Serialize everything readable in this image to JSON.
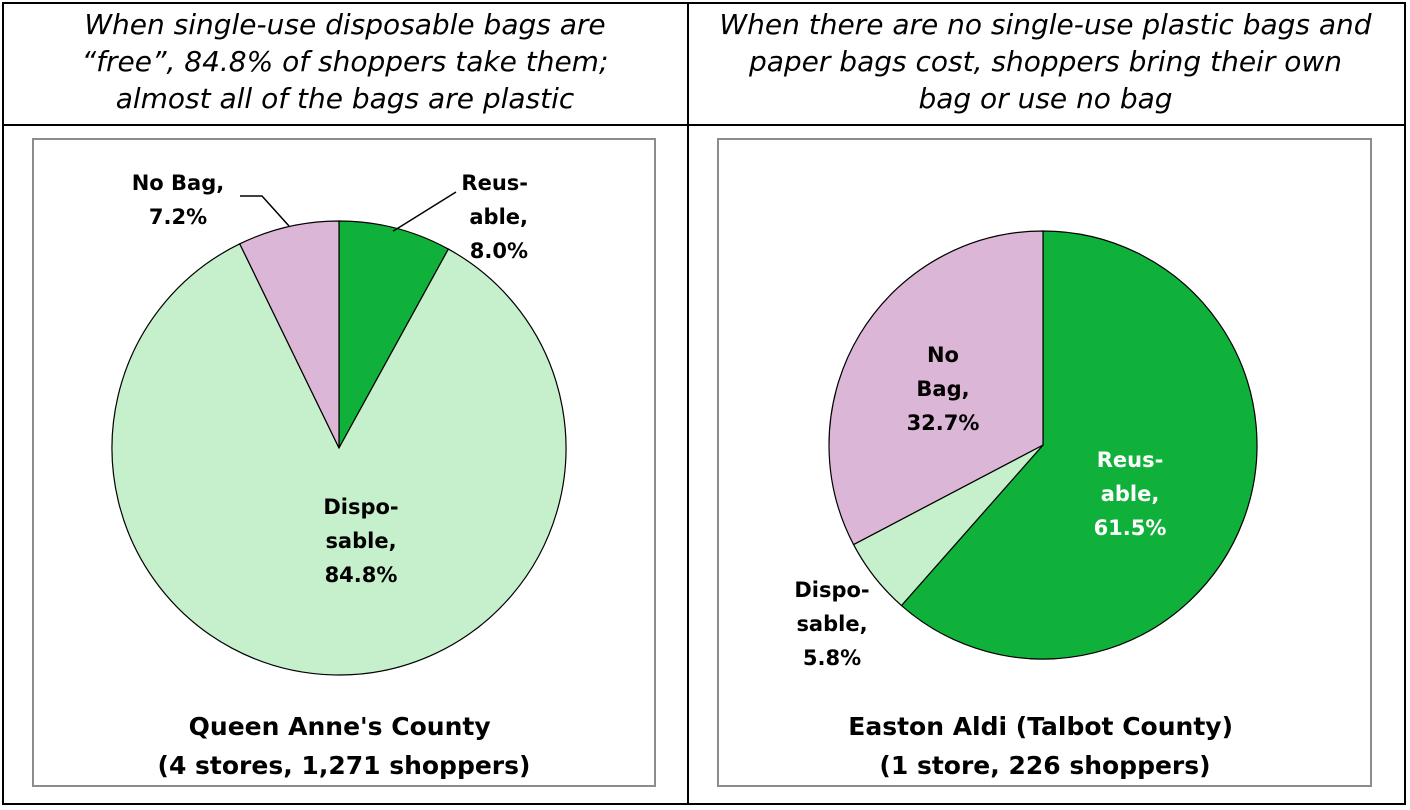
{
  "panels": [
    {
      "heading_lines": [
        "When single-use disposable bags are",
        "“free”, 84.8% of shoppers take them;",
        "almost all of the bags are plastic"
      ]
    },
    {
      "heading_lines": [
        "When there are no single-use plastic bags and",
        "paper bags cost, shoppers bring their own",
        "bag or use no bag"
      ]
    }
  ],
  "chart_data": [
    {
      "type": "pie",
      "subtitle_lines": [
        "Queen Anne's County",
        "(4 stores, 1,271 shoppers)"
      ],
      "slices": [
        {
          "label_lines": [
            "Reus-",
            "able,",
            "8.0%"
          ],
          "value": 8.0,
          "color": "#10b13a",
          "label_color": "#000000"
        },
        {
          "label_lines": [
            "Dispo-",
            "sable,",
            "84.8%"
          ],
          "value": 84.8,
          "color": "#c6f0cb",
          "label_color": "#000000"
        },
        {
          "label_lines": [
            "No Bag,",
            "7.2%"
          ],
          "value": 7.2,
          "color": "#dbb6d6",
          "label_color": "#000000"
        }
      ]
    },
    {
      "type": "pie",
      "subtitle_lines": [
        "Easton Aldi (Talbot County)",
        "(1 store, 226 shoppers)"
      ],
      "slices": [
        {
          "label_lines": [
            "Reus-",
            "able,",
            "61.5%"
          ],
          "value": 61.5,
          "color": "#10b13a",
          "label_color": "#ffffff"
        },
        {
          "label_lines": [
            "Dispo-",
            "sable,",
            "5.8%"
          ],
          "value": 5.8,
          "color": "#c6f0cb",
          "label_color": "#000000"
        },
        {
          "label_lines": [
            "No",
            "Bag,",
            "32.7%"
          ],
          "value": 32.7,
          "color": "#dbb6d6",
          "label_color": "#000000"
        }
      ]
    }
  ]
}
